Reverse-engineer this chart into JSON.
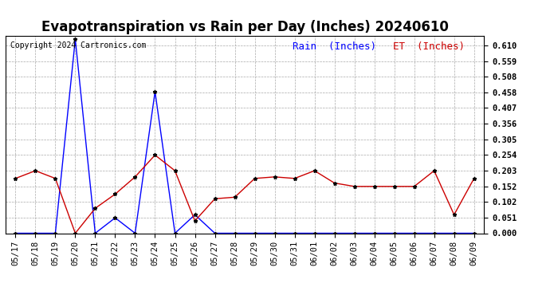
{
  "title": "Evapotranspiration vs Rain per Day (Inches) 20240610",
  "copyright": "Copyright 2024 Cartronics.com",
  "legend_rain": "Rain  (Inches)",
  "legend_et": "ET  (Inches)",
  "rain_color": "#0000ff",
  "et_color": "#cc0000",
  "background_color": "#ffffff",
  "grid_color": "#aaaaaa",
  "ylim": [
    0.0,
    0.641
  ],
  "yticks": [
    0.0,
    0.051,
    0.102,
    0.152,
    0.203,
    0.254,
    0.305,
    0.356,
    0.407,
    0.458,
    0.508,
    0.559,
    0.61
  ],
  "labels": [
    "05/17",
    "05/18",
    "05/19",
    "05/20",
    "05/21",
    "05/22",
    "05/23",
    "05/24",
    "05/25",
    "05/26",
    "05/27",
    "05/28",
    "05/29",
    "05/30",
    "05/31",
    "06/01",
    "06/02",
    "06/03",
    "06/04",
    "06/05",
    "06/06",
    "06/07",
    "06/08",
    "06/09"
  ],
  "rain": [
    0.0,
    0.0,
    0.0,
    0.63,
    0.0,
    0.05,
    0.0,
    0.46,
    0.0,
    0.06,
    0.0,
    0.0,
    0.0,
    0.0,
    0.0,
    0.0,
    0.0,
    0.0,
    0.0,
    0.0,
    0.0,
    0.0,
    0.0,
    0.0
  ],
  "et": [
    0.178,
    0.203,
    0.178,
    0.0,
    0.081,
    0.127,
    0.183,
    0.254,
    0.203,
    0.04,
    0.112,
    0.117,
    0.178,
    0.183,
    0.178,
    0.203,
    0.163,
    0.152,
    0.152,
    0.152,
    0.152,
    0.203,
    0.06,
    0.178
  ],
  "title_fontsize": 12,
  "tick_fontsize": 7.5,
  "legend_fontsize": 9,
  "copyright_fontsize": 7
}
